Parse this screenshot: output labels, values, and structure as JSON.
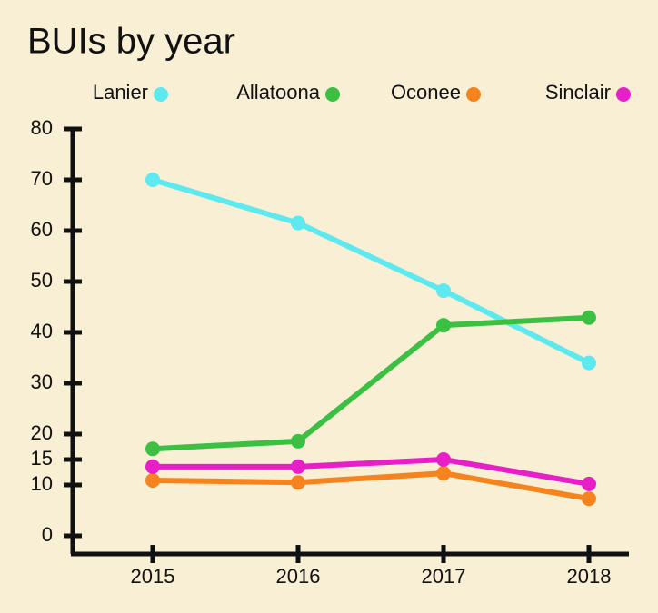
{
  "chart_data": {
    "type": "line",
    "title": "BUIs by year",
    "categories": [
      "2015",
      "2016",
      "2017",
      "2018"
    ],
    "series": [
      {
        "name": "Lanier",
        "color": "#5ee8f0",
        "values": [
          70,
          61.5,
          48.2,
          34
        ]
      },
      {
        "name": "Allatoona",
        "color": "#3cc043",
        "values": [
          17.1,
          18.6,
          41.4,
          42.9
        ]
      },
      {
        "name": "Oconee",
        "color": "#f5841f",
        "values": [
          10.9,
          10.5,
          12.3,
          7.3
        ]
      },
      {
        "name": "Sinclair",
        "color": "#e61fc8",
        "values": [
          13.6,
          13.6,
          15,
          10.2
        ]
      }
    ],
    "ylim": [
      0,
      80
    ],
    "yticks": [
      0,
      10,
      15,
      20,
      30,
      40,
      50,
      60,
      70,
      80
    ]
  }
}
